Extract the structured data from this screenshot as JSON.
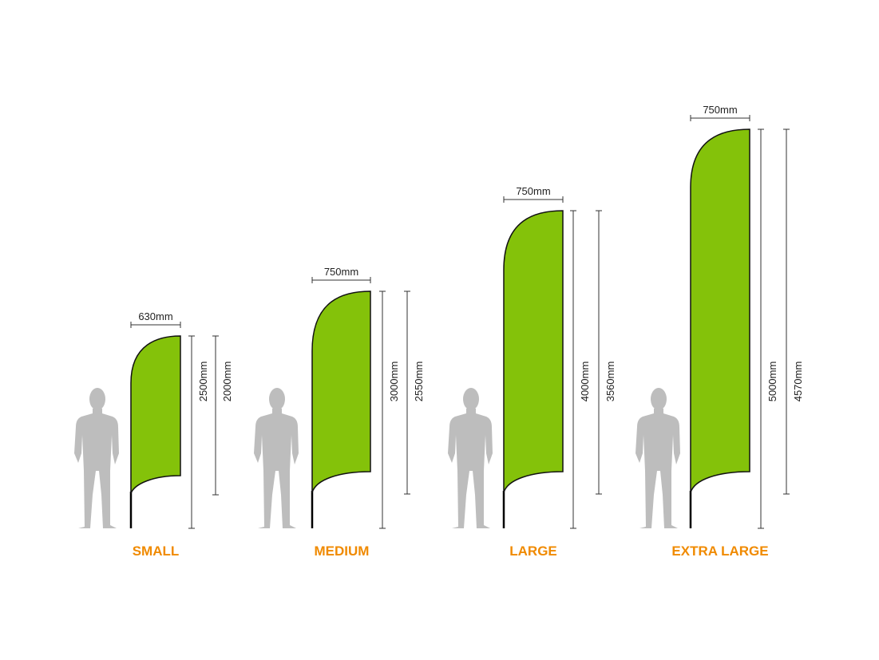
{
  "flags": [
    {
      "name": "SMALL",
      "width": "630mm",
      "total_height": "2500mm",
      "flag_height": "2000mm"
    },
    {
      "name": "MEDIUM",
      "width": "750mm",
      "total_height": "3000mm",
      "flag_height": "2550mm"
    },
    {
      "name": "LARGE",
      "width": "750mm",
      "total_height": "4000mm",
      "flag_height": "3560mm"
    },
    {
      "name": "EXTRA LARGE",
      "width": "750mm",
      "total_height": "5000mm",
      "flag_height": "4570mm"
    }
  ]
}
